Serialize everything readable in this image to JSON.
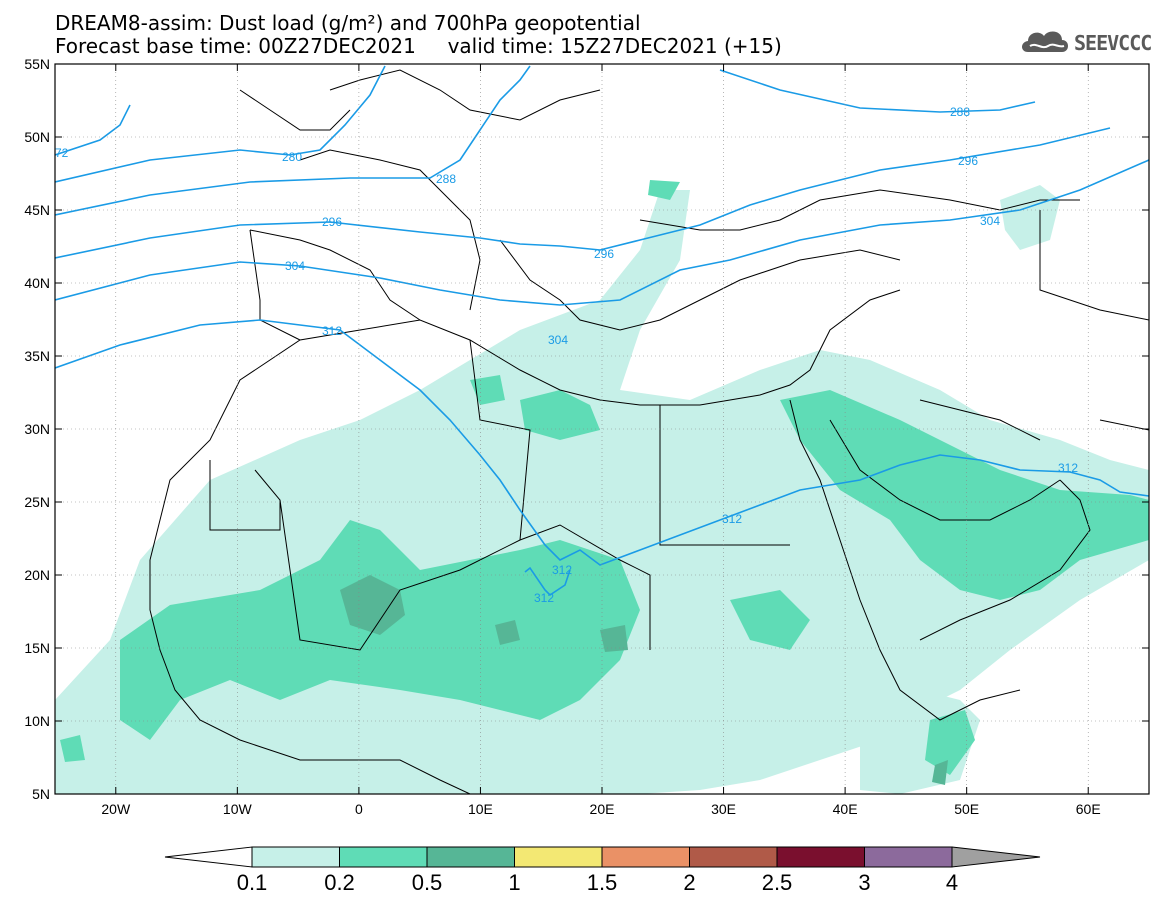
{
  "title": {
    "line1": "DREAM8-assim: Dust load (g/m²) and 700hPa geopotential",
    "line2": "Forecast base time: 00Z27DEC2021     valid time: 15Z27DEC2021 (+15)"
  },
  "logo": {
    "text": "SEEVCCC",
    "icon": "cloud-logo-icon"
  },
  "map": {
    "lon_range": [
      -25,
      65
    ],
    "lat_range": [
      5,
      55
    ],
    "x_ticks": [
      "20W",
      "10W",
      "0",
      "10E",
      "20E",
      "30E",
      "40E",
      "50E",
      "60E"
    ],
    "y_ticks": [
      "55N",
      "50N",
      "45N",
      "40N",
      "35N",
      "30N",
      "25N",
      "20N",
      "15N",
      "10N",
      "5N"
    ],
    "contour_labels": [
      "72",
      "280",
      "288",
      "296",
      "304",
      "312",
      "288",
      "296",
      "304",
      "296",
      "304",
      "312",
      "312",
      "312",
      "312"
    ],
    "line_color": "#1a9be6"
  },
  "colorbar": {
    "labels": [
      "0.1",
      "0.2",
      "0.5",
      "1",
      "1.5",
      "2",
      "2.5",
      "3",
      "4"
    ],
    "colors": [
      "#c6f0e8",
      "#5fdcb6",
      "#56b696",
      "#f3e873",
      "#ea9166",
      "#b05a48",
      "#7a0f2e",
      "#8c6a9c",
      "#a0a0a0"
    ]
  }
}
